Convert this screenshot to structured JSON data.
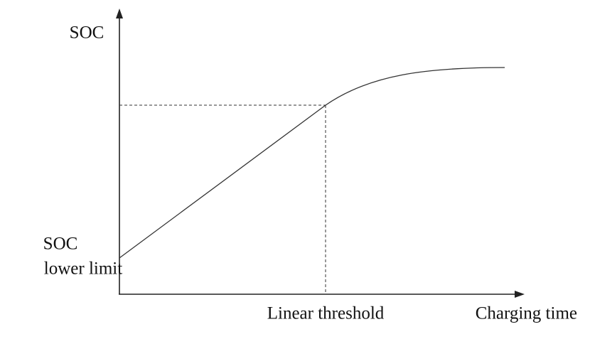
{
  "y_axis": {
    "label": "SOC",
    "lower_label": [
      "SOC",
      "lower limit"
    ]
  },
  "x_axis": {
    "label": "Charging time",
    "threshold_label": "Linear threshold"
  }
}
